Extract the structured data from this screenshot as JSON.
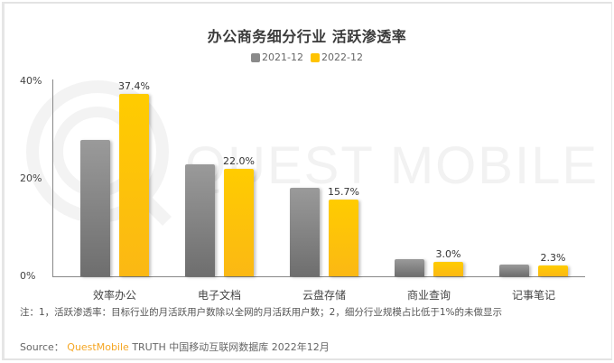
{
  "chart_data": {
    "type": "bar",
    "title": "办公商务细分行业 活跃渗透率",
    "categories": [
      "效率办公",
      "电子文档",
      "云盘存储",
      "商业查询",
      "记事笔记"
    ],
    "series": [
      {
        "name": "2021-12",
        "color": "#8a8a8a",
        "values": [
          28.0,
          23.0,
          18.2,
          3.6,
          2.4
        ],
        "labeled": false
      },
      {
        "name": "2022-12",
        "color": "#ffc300",
        "values": [
          37.4,
          22.0,
          15.7,
          3.0,
          2.3
        ],
        "labeled": true
      }
    ],
    "data_labels": [
      "37.4%",
      "22.0%",
      "15.7%",
      "3.0%",
      "2.3%"
    ],
    "xlabel": "",
    "ylabel": "",
    "ylim": [
      0,
      40
    ],
    "yticks": [
      "0%",
      "20%",
      "40%"
    ],
    "grid": false,
    "legend_position": "top-center"
  },
  "header": {
    "title": "办公商务细分行业 活跃渗透率"
  },
  "legend": [
    {
      "label": "2021-12",
      "color": "#8a8a8a"
    },
    {
      "label": "2022-12",
      "color": "#ffc300"
    }
  ],
  "axis": {
    "y_ticks": [
      "40%",
      "20%",
      "0%"
    ]
  },
  "watermark": {
    "text": "QUEST MOBILE"
  },
  "footer": {
    "note": "注：1，活跃渗透率：目标行业的月活跃用户数除以全网的月活跃用户数；2，细分行业规模占比低于1%的未做显示",
    "source_prefix": "Source：",
    "source_brand": "QuestMobile",
    "source_rest": "TRUTH 中国移动互联网数据库 2022年12月"
  }
}
